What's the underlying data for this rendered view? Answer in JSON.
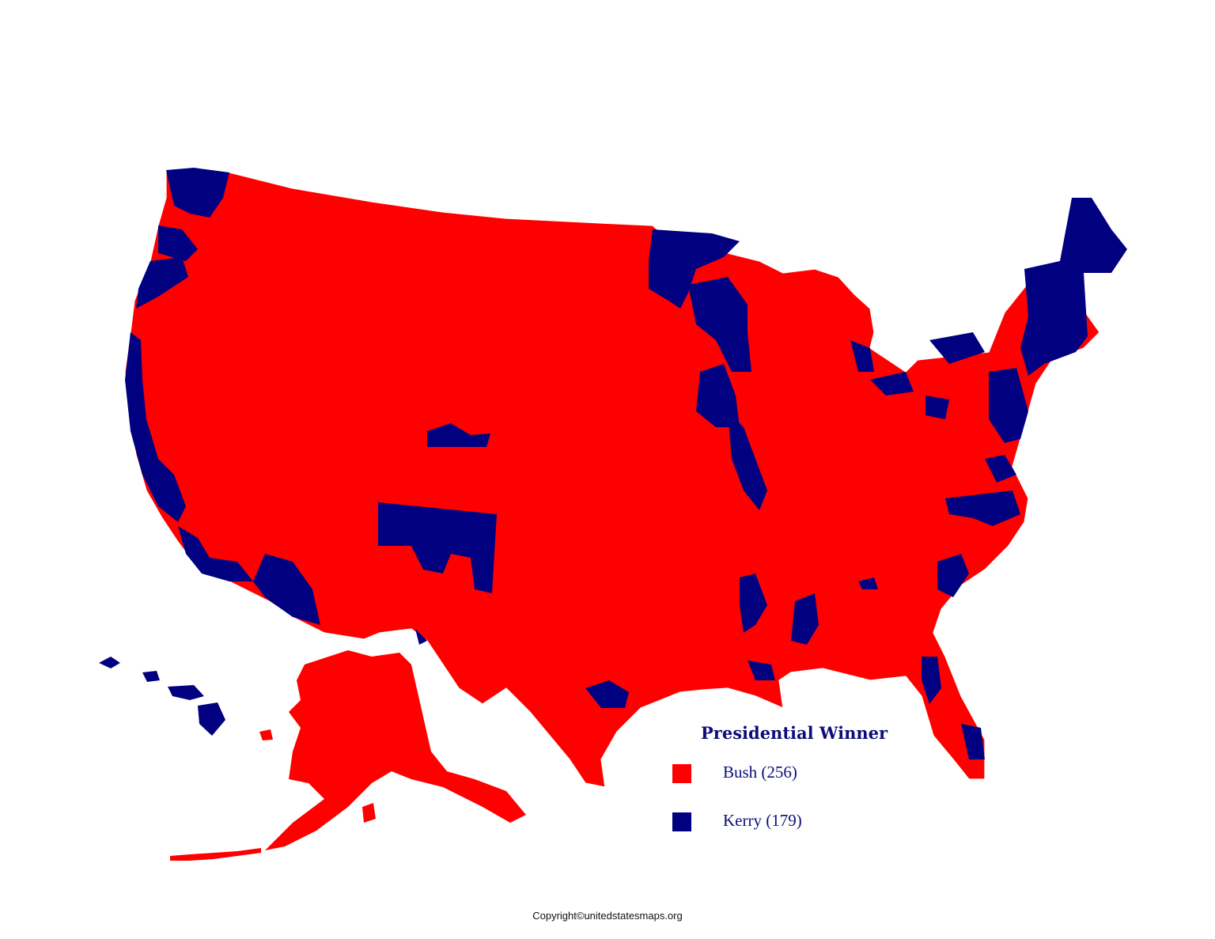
{
  "legend": {
    "title": "Presidential Winner",
    "items": [
      {
        "label": "Bush (256)",
        "color": "#ff0000"
      },
      {
        "label": "Kerry (179)",
        "color": "#000080"
      }
    ]
  },
  "copyright": "Copyright©unitedstatesmaps.org",
  "colors": {
    "republican": "#ff0000",
    "democrat": "#000080",
    "border": "#ffffff"
  }
}
